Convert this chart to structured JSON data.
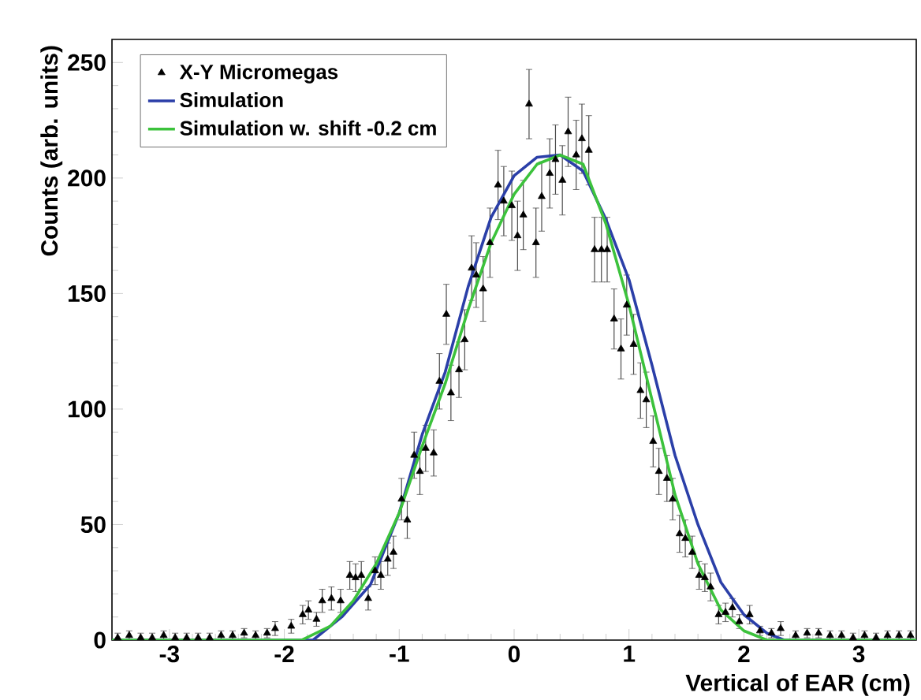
{
  "chart_data": {
    "type": "line",
    "xlabel": "Vertical of EAR (cm)",
    "ylabel": "Counts (arb. units)",
    "xlim": [
      -3.5,
      3.5
    ],
    "ylim": [
      0,
      260
    ],
    "xticks": [
      -3,
      -2,
      -1,
      0,
      1,
      2,
      3
    ],
    "yticks": [
      0,
      50,
      100,
      150,
      200,
      250
    ],
    "grid": false,
    "legend": "top left",
    "series": [
      {
        "name": "X-Y Micromegas",
        "type": "scatter",
        "marker": "triangle",
        "color": "#000000",
        "x": [
          -3.45,
          -3.35,
          -3.25,
          -3.15,
          -3.05,
          -2.95,
          -2.85,
          -2.75,
          -2.65,
          -2.55,
          -2.45,
          -2.35,
          -2.25,
          -2.15,
          -2.08,
          -1.94,
          -1.84,
          -1.79,
          -1.72,
          -1.67,
          -1.59,
          -1.51,
          -1.43,
          -1.38,
          -1.33,
          -1.27,
          -1.21,
          -1.16,
          -1.1,
          -1.05,
          -0.98,
          -0.93,
          -0.87,
          -0.82,
          -0.77,
          -0.7,
          -0.65,
          -0.59,
          -0.55,
          -0.48,
          -0.43,
          -0.37,
          -0.33,
          -0.27,
          -0.21,
          -0.14,
          -0.09,
          -0.02,
          0.03,
          0.08,
          0.13,
          0.19,
          0.24,
          0.31,
          0.36,
          0.42,
          0.47,
          0.54,
          0.59,
          0.65,
          0.7,
          0.76,
          0.81,
          0.87,
          0.93,
          0.98,
          1.04,
          1.1,
          1.15,
          1.21,
          1.26,
          1.33,
          1.38,
          1.44,
          1.49,
          1.55,
          1.61,
          1.66,
          1.71,
          1.78,
          1.84,
          1.9,
          1.96,
          2.05,
          2.14,
          2.24,
          2.32,
          2.45,
          2.55,
          2.65,
          2.75,
          2.85,
          2.95,
          3.05,
          3.15,
          3.25,
          3.35,
          3.45
        ],
        "values": [
          1,
          2,
          1,
          1,
          2,
          1,
          1,
          1,
          1,
          2,
          2,
          3,
          2,
          3,
          5,
          6,
          11,
          13,
          9,
          17,
          18,
          17,
          28,
          27,
          28,
          18,
          30,
          28,
          35,
          38,
          61,
          52,
          80,
          73,
          83,
          81,
          112,
          141,
          107,
          117,
          130,
          161,
          158,
          152,
          172,
          197,
          190,
          188,
          175,
          184,
          232,
          172,
          192,
          202,
          208,
          199,
          220,
          210,
          217,
          212,
          169,
          169,
          169,
          139,
          126,
          145,
          128,
          108,
          104,
          86,
          73,
          70,
          61,
          46,
          44,
          38,
          28,
          27,
          23,
          11,
          12,
          14,
          8,
          11,
          4,
          3,
          5,
          2,
          3,
          3,
          2,
          2,
          1,
          2,
          1,
          2,
          2,
          2
        ],
        "errors": [
          2,
          2,
          2,
          2,
          2,
          2,
          2,
          2,
          2,
          2,
          2,
          2,
          2,
          2,
          3,
          3,
          4,
          4,
          3,
          5,
          5,
          5,
          6,
          6,
          6,
          5,
          6,
          6,
          7,
          7,
          9,
          8,
          10,
          10,
          10,
          10,
          12,
          13,
          12,
          12,
          13,
          14,
          14,
          14,
          15,
          15,
          15,
          15,
          15,
          15,
          15,
          15,
          15,
          15,
          15,
          15,
          15,
          15,
          15,
          15,
          14,
          14,
          14,
          13,
          13,
          13,
          13,
          12,
          12,
          11,
          10,
          10,
          9,
          8,
          8,
          7,
          6,
          6,
          6,
          4,
          4,
          4,
          3,
          4,
          2,
          2,
          3,
          2,
          2,
          2,
          2,
          2,
          2,
          2,
          2,
          2,
          2,
          2
        ]
      },
      {
        "name": "Simulation",
        "color": "#2b3fa8",
        "x": [
          -3.5,
          -1.75,
          -1.5,
          -1.25,
          -1.0,
          -0.8,
          -0.6,
          -0.4,
          -0.2,
          0,
          0.2,
          0.4,
          0.6,
          0.8,
          1.0,
          1.2,
          1.4,
          1.6,
          1.8,
          2.0,
          2.2,
          2.35,
          3.5
        ],
        "values": [
          0,
          0,
          10,
          24,
          55,
          89,
          116,
          153,
          183,
          201,
          209,
          210,
          203,
          182,
          156,
          119,
          80,
          50,
          25,
          11,
          3,
          0,
          0
        ]
      },
      {
        "name": "Simulation w. shift -0.2 cm",
        "color": "#3cc23c",
        "x": [
          -3.5,
          -1.85,
          -1.6,
          -1.4,
          -1.2,
          -1.0,
          -0.8,
          -0.6,
          -0.4,
          -0.2,
          0,
          0.2,
          0.4,
          0.6,
          0.8,
          1.0,
          1.2,
          1.4,
          1.6,
          1.8,
          2.0,
          2.2,
          3.5
        ],
        "values": [
          0,
          0,
          6,
          17,
          33,
          55,
          84,
          111,
          143,
          172,
          193,
          206,
          210,
          206,
          180,
          145,
          104,
          63,
          33,
          13,
          4,
          0,
          0
        ]
      }
    ]
  }
}
